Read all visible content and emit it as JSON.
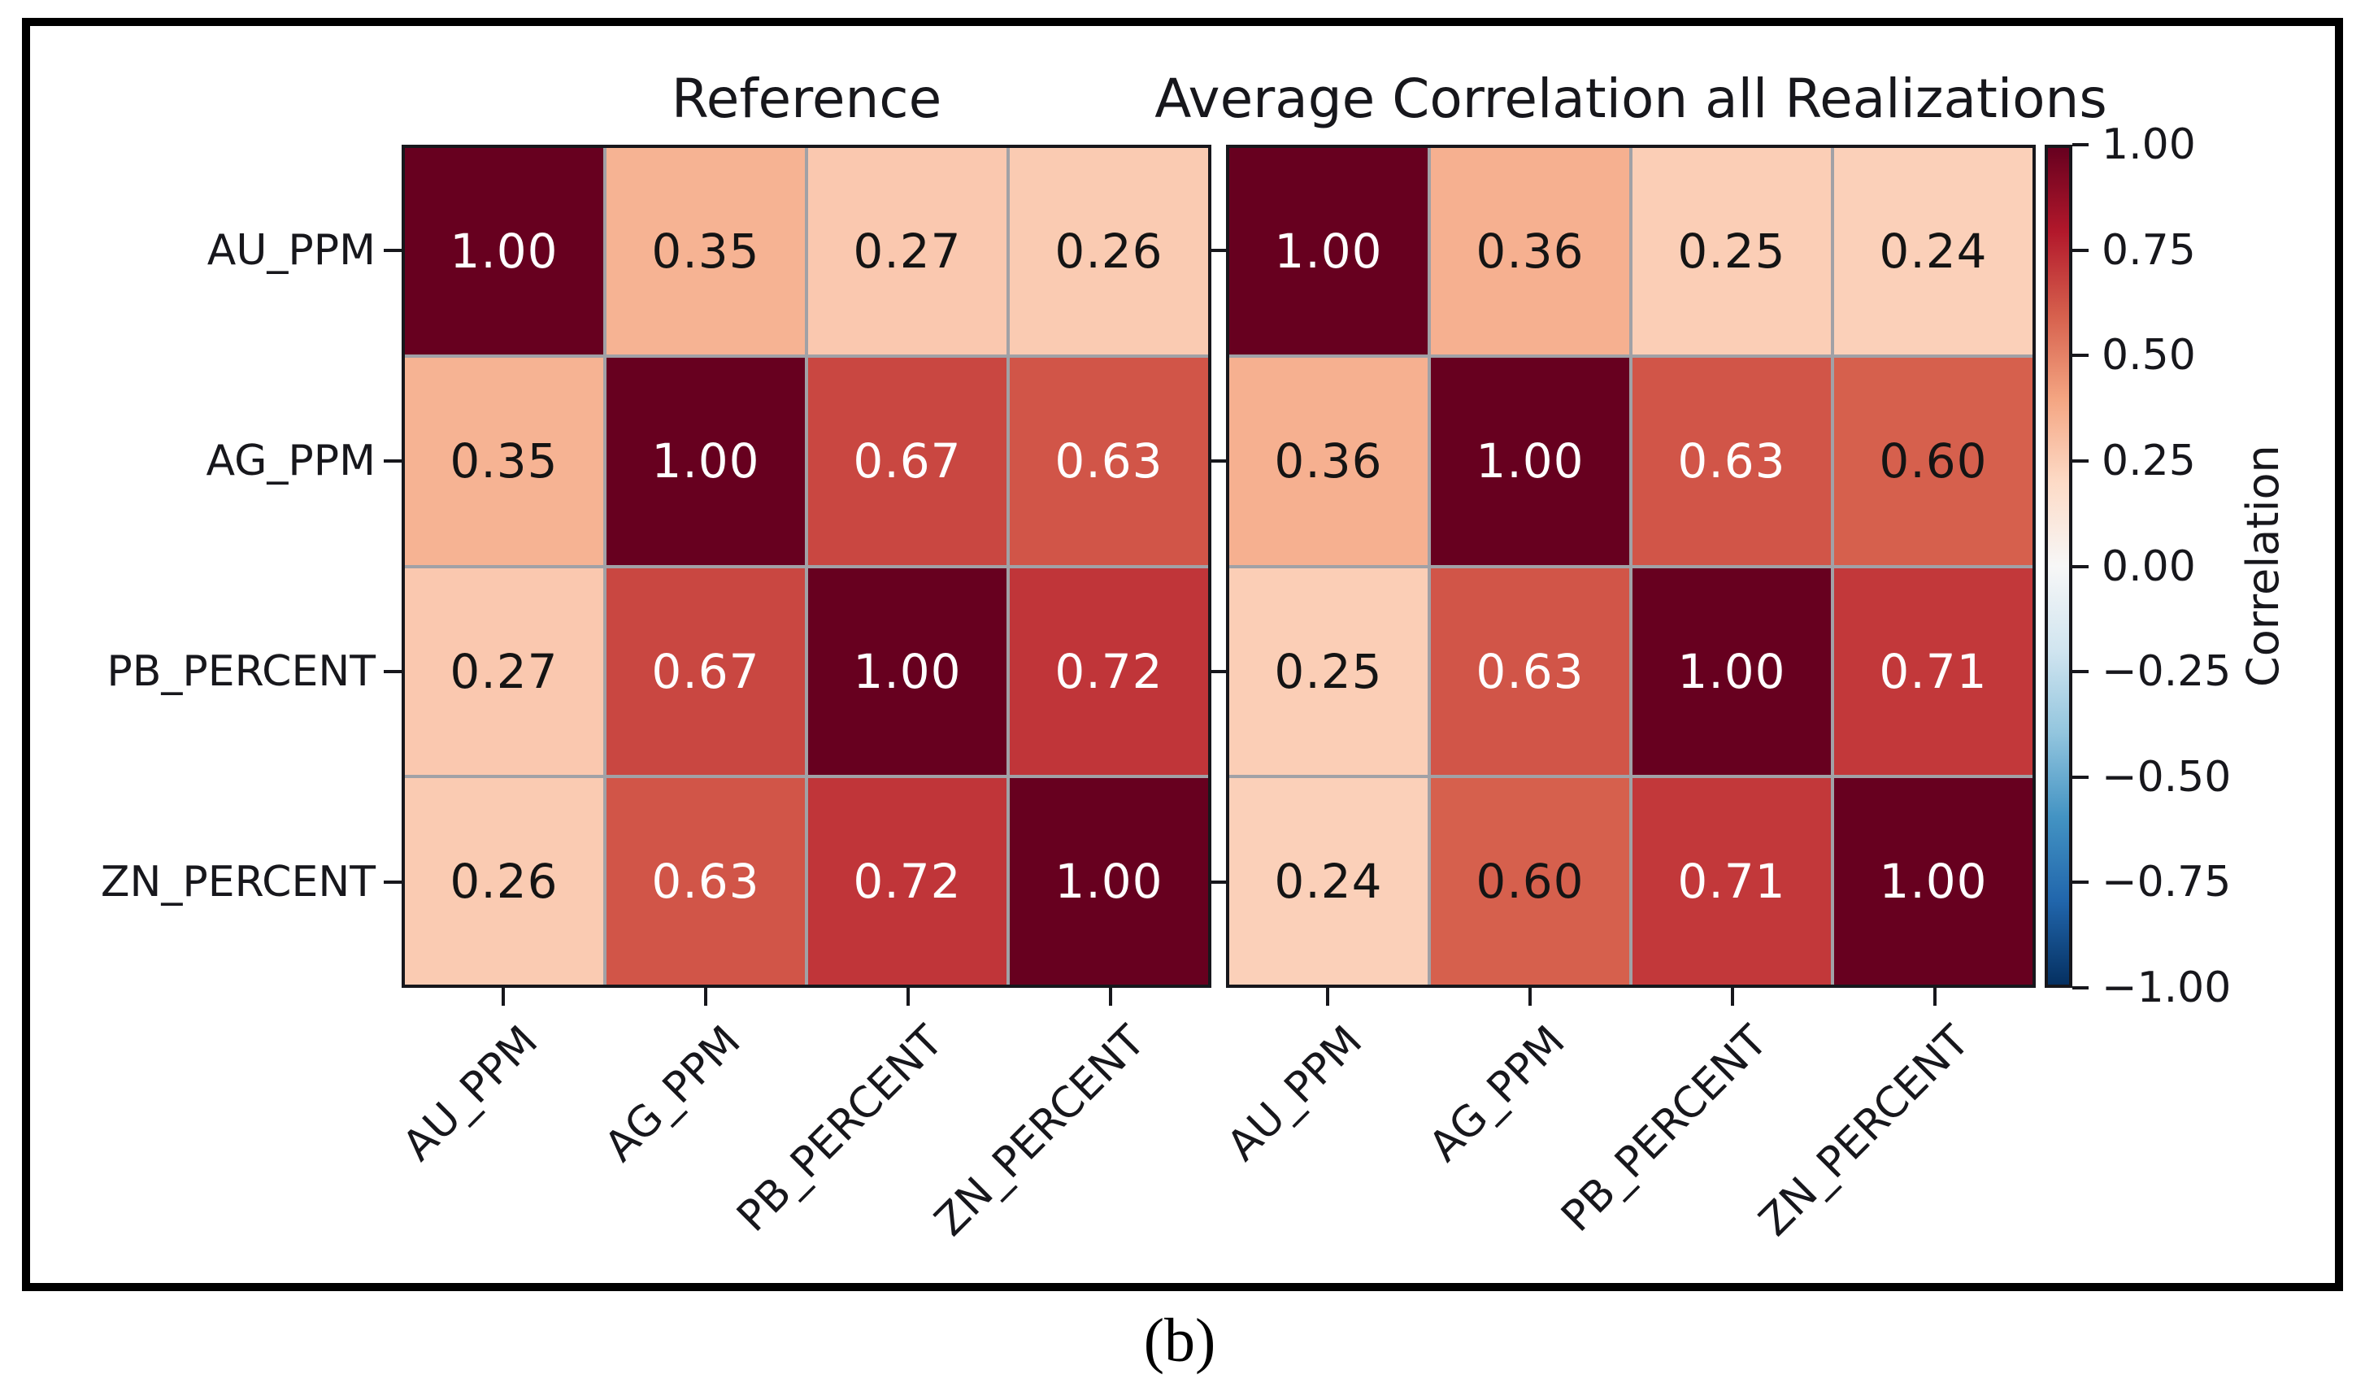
{
  "figure": {
    "caption": "(b)"
  },
  "colors": {
    "colormap_stops_blue_to_red": [
      "#053061",
      "#2166ac",
      "#4393c3",
      "#92c5de",
      "#d1e5f0",
      "#f7f7f7",
      "#fddbc7",
      "#f4a582",
      "#d6604d",
      "#b2182b",
      "#67001f"
    ],
    "grid_line": "#a1a1a6",
    "spine": "#17171c",
    "annotation_dark": "#141414",
    "annotation_light": "#ffffff",
    "figure_border": "#000000",
    "background": "#ffffff"
  },
  "chart_data": {
    "type": "heatmap",
    "variables": [
      "AU_PPM",
      "AG_PPM",
      "PB_PERCENT",
      "ZN_PERCENT"
    ],
    "panels": [
      {
        "title": "Reference",
        "matrix": [
          [
            1.0,
            0.35,
            0.27,
            0.26
          ],
          [
            0.35,
            1.0,
            0.67,
            0.63
          ],
          [
            0.27,
            0.67,
            1.0,
            0.72
          ],
          [
            0.26,
            0.63,
            0.72,
            1.0
          ]
        ]
      },
      {
        "title": "Average Correlation all Realizations",
        "matrix": [
          [
            1.0,
            0.36,
            0.25,
            0.24
          ],
          [
            0.36,
            1.0,
            0.63,
            0.6
          ],
          [
            0.25,
            0.63,
            1.0,
            0.71
          ],
          [
            0.24,
            0.6,
            0.71,
            1.0
          ]
        ]
      }
    ],
    "colorbar": {
      "label": "Correlation",
      "ticks": [
        1.0,
        0.75,
        0.5,
        0.25,
        0.0,
        -0.25,
        -0.5,
        -0.75,
        -1.0
      ],
      "range": [
        -1,
        1
      ],
      "colormap": "RdBu_r"
    },
    "annotation_decimals": 2,
    "legend_position": "right",
    "grid": false
  }
}
